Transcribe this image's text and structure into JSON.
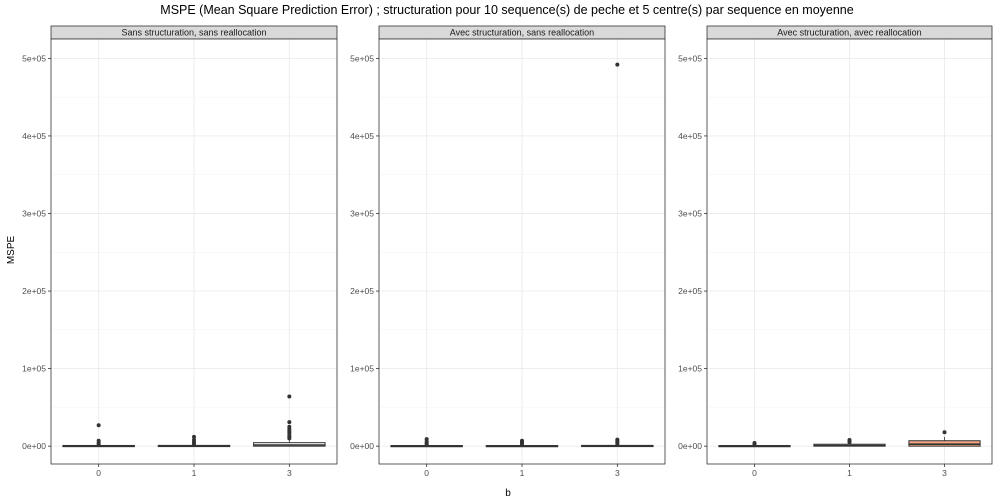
{
  "title": "MSPE (Mean Square Prediction Error) ; structuration pour 10 sequence(s) de peche et 5 centre(s) par sequence en moyenne",
  "xlabel": "b",
  "ylabel": "MSPE",
  "colors": {
    "strip_bg": "#d9d9d9",
    "grid_major": "#ebebeb",
    "grid_minor": "#f5f5f5",
    "box_fill": "#ffffff",
    "box_fill_highlight": "#f4a582",
    "box_line": "#333333",
    "point": "#333333",
    "panel_border": "#333333"
  },
  "chart_data": {
    "type": "box",
    "categories": [
      "0",
      "1",
      "3"
    ],
    "y_tick_labels": [
      "0e+00",
      "1e+05",
      "2e+05",
      "3e+05",
      "4e+05",
      "5e+05"
    ],
    "y_ticks": [
      0,
      100000,
      200000,
      300000,
      400000,
      500000
    ],
    "ylim": [
      -23000,
      525000
    ],
    "grid": true,
    "panels": [
      {
        "strip": "Sans structuration, sans reallocation",
        "boxes": [
          {
            "category": "0",
            "q1": 0,
            "median": 300,
            "q3": 900,
            "whisker_low": 0,
            "whisker_high": 1500,
            "outliers": [
              2500,
              4000,
              7000,
              27000
            ]
          },
          {
            "category": "1",
            "q1": 0,
            "median": 300,
            "q3": 1000,
            "whisker_low": 0,
            "whisker_high": 1800,
            "outliers": [
              3000,
              5000,
              8000,
              12000
            ]
          },
          {
            "category": "3",
            "q1": 0,
            "median": 1500,
            "q3": 4500,
            "whisker_low": 0,
            "whisker_high": 9000,
            "outliers": [
              10000,
              12000,
              14000,
              17000,
              19000,
              22000,
              25000,
              31000,
              64000
            ]
          }
        ]
      },
      {
        "strip": "Avec structuration, sans reallocation",
        "boxes": [
          {
            "category": "0",
            "q1": 0,
            "median": 200,
            "q3": 800,
            "whisker_low": 0,
            "whisker_high": 1500,
            "outliers": [
              2500,
              4000,
              6000,
              9000
            ]
          },
          {
            "category": "1",
            "q1": 0,
            "median": 200,
            "q3": 800,
            "whisker_low": 0,
            "whisker_high": 1500,
            "outliers": [
              2500,
              4000,
              5500,
              7000
            ]
          },
          {
            "category": "3",
            "q1": 0,
            "median": 200,
            "q3": 1000,
            "whisker_low": 0,
            "whisker_high": 1800,
            "outliers": [
              3000,
              5000,
              6500,
              8500,
              492000
            ]
          }
        ]
      },
      {
        "strip": "Avec structuration, avec reallocation",
        "boxes": [
          {
            "category": "0",
            "q1": 0,
            "median": 200,
            "q3": 800,
            "whisker_low": 0,
            "whisker_high": 1500,
            "outliers": [
              2500,
              4000
            ]
          },
          {
            "category": "1",
            "q1": 0,
            "median": 800,
            "q3": 2500,
            "whisker_low": 0,
            "whisker_high": 4000,
            "outliers": [
              5000,
              6500,
              8000
            ]
          },
          {
            "category": "3",
            "q1": 0,
            "median": 2500,
            "q3": 7000,
            "whisker_low": 0,
            "whisker_high": 12000,
            "outliers": [
              18000
            ],
            "highlight": true
          }
        ]
      }
    ]
  }
}
